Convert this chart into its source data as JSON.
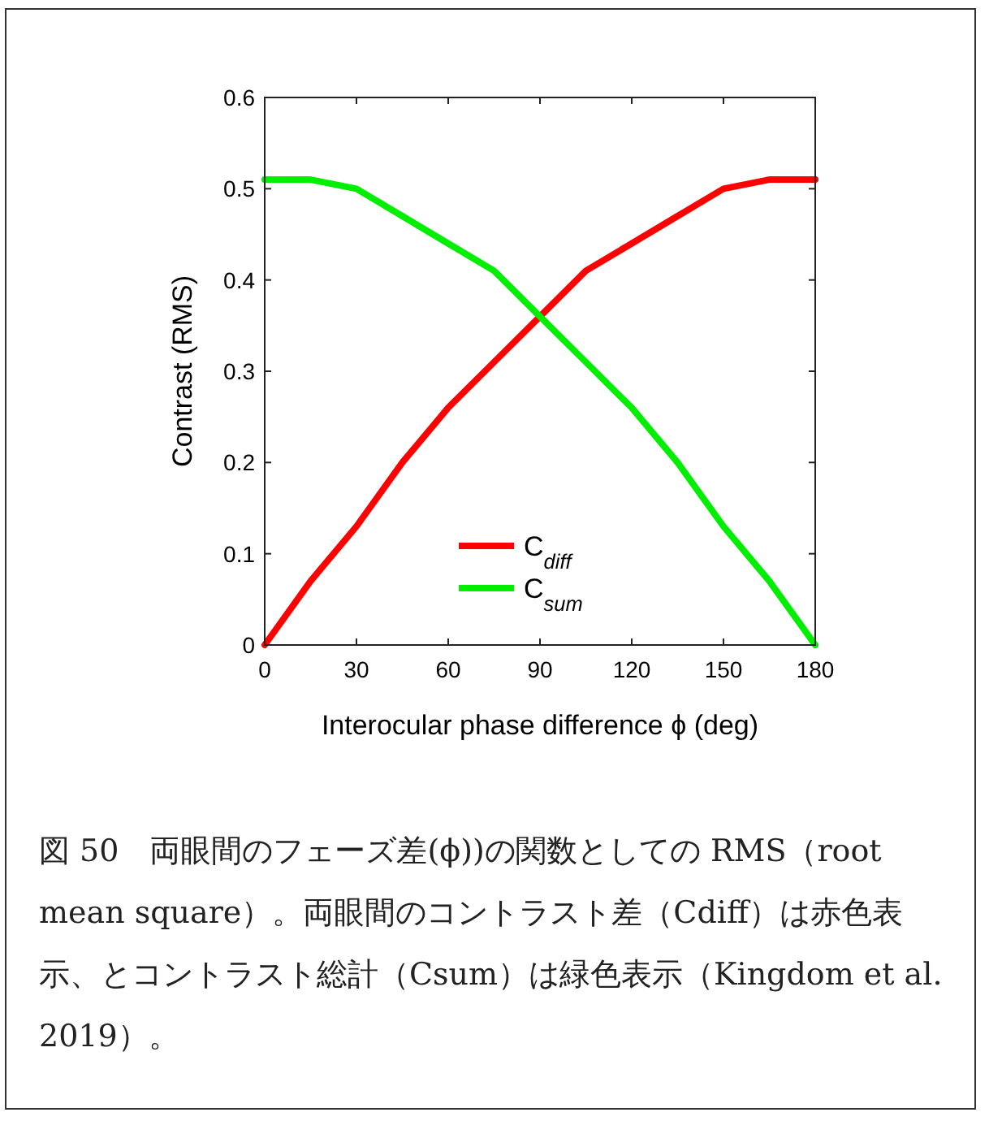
{
  "chart_data": {
    "type": "line",
    "xlabel": "Interocular phase difference ϕ (deg)",
    "ylabel": "Contrast (RMS)",
    "x": [
      0,
      15,
      30,
      45,
      60,
      75,
      90,
      105,
      120,
      135,
      150,
      165,
      180
    ],
    "series": [
      {
        "name": "C$_{diff}$",
        "color": "#ff0000",
        "values": [
          0,
          0.07,
          0.13,
          0.2,
          0.26,
          0.31,
          0.36,
          0.41,
          0.44,
          0.47,
          0.5,
          0.51,
          0.51
        ]
      },
      {
        "name": "C$_{sum}$",
        "color": "#00ee00",
        "values": [
          0.51,
          0.51,
          0.5,
          0.47,
          0.44,
          0.41,
          0.36,
          0.31,
          0.26,
          0.2,
          0.13,
          0.07,
          0
        ]
      }
    ],
    "xlim": [
      0,
      180
    ],
    "xticks": [
      0,
      30,
      60,
      90,
      120,
      150,
      180
    ],
    "ylim": [
      0,
      0.6
    ],
    "yticks": [
      0,
      0.1,
      0.2,
      0.3,
      0.4,
      0.5,
      0.6
    ],
    "legend": "bottom",
    "grid": false,
    "marker": "none",
    "line_style": "solid",
    "annotations": [
      "図 50　両眼間のフェーズ差(ϕ))の関数としての RMS（root mean square）。両眼間のコントラスト差（Cdiff）は赤色表示、とコントラスト総計（Csum）は緑色表示（Kingdom et al. 2019）。"
    ]
  }
}
